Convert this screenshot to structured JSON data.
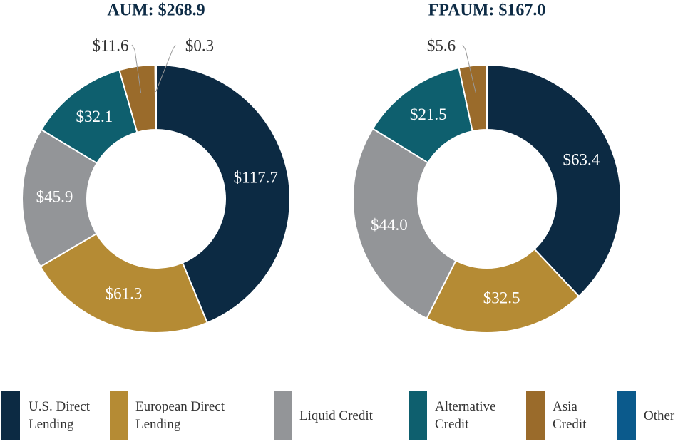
{
  "chart_data": [
    {
      "type": "pie",
      "title": "AUM: $268.9",
      "values": [
        117.7,
        61.3,
        45.9,
        32.1,
        11.6,
        0.3
      ],
      "value_labels": [
        "$117.7",
        "$61.3",
        "$45.9",
        "$32.1",
        "$11.6",
        "$0.3"
      ]
    },
    {
      "type": "pie",
      "title": "FPAUM: $167.0",
      "values": [
        63.4,
        32.5,
        44.0,
        21.5,
        5.6
      ],
      "value_labels": [
        "$63.4",
        "$32.5",
        "$44.0",
        "$21.5",
        "$5.6"
      ]
    }
  ],
  "legend": {
    "items": [
      {
        "name": "U.S. Direct Lending",
        "color": "#0c2a43"
      },
      {
        "name": "European Direct Lending",
        "color": "#b58b34"
      },
      {
        "name": "Liquid Credit",
        "color": "#939598"
      },
      {
        "name": "Alternative Credit",
        "color": "#0e5f6e"
      },
      {
        "name": "Asia Credit",
        "color": "#9a6b2b"
      },
      {
        "name": "Other",
        "color": "#0b5a8c"
      }
    ]
  }
}
